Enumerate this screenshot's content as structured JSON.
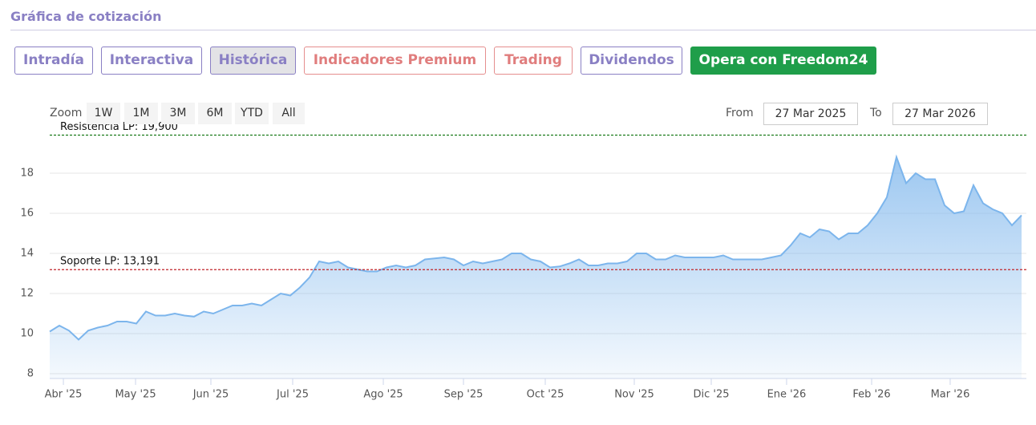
{
  "header": {
    "title": "Gráfica de cotización"
  },
  "tabs": [
    "Intradía",
    "Interactiva",
    "Histórica",
    "Indicadores Premium",
    "Trading",
    "Dividendos",
    "Opera con Freedom24"
  ],
  "zoom": {
    "label": "Zoom",
    "buttons": [
      "1W",
      "1M",
      "3M",
      "6M",
      "YTD",
      "All"
    ]
  },
  "range": {
    "from_label": "From",
    "from": "27 Mar 2025",
    "to_label": "To",
    "to": "27 Mar 2026"
  },
  "chart_data": {
    "type": "area",
    "color": "#7cb5ec",
    "values": [
      10.1,
      10.4,
      10.15,
      9.7,
      10.15,
      10.3,
      10.4,
      10.6,
      10.6,
      10.5,
      11.1,
      10.9,
      10.9,
      11.0,
      10.9,
      10.85,
      11.1,
      11.0,
      11.2,
      11.4,
      11.4,
      11.5,
      11.4,
      11.7,
      12.0,
      11.9,
      12.3,
      12.8,
      13.6,
      13.5,
      13.6,
      13.3,
      13.2,
      13.1,
      13.1,
      13.3,
      13.4,
      13.3,
      13.4,
      13.7,
      13.75,
      13.8,
      13.7,
      13.4,
      13.6,
      13.5,
      13.6,
      13.7,
      14.0,
      14.0,
      13.7,
      13.6,
      13.3,
      13.35,
      13.5,
      13.7,
      13.4,
      13.4,
      13.5,
      13.5,
      13.6,
      14.0,
      14.0,
      13.7,
      13.7,
      13.9,
      13.8,
      13.8,
      13.8,
      13.8,
      13.9,
      13.7,
      13.7,
      13.7,
      13.7,
      13.8,
      13.9,
      14.4,
      15.0,
      14.8,
      15.2,
      15.1,
      14.7,
      15.0,
      15.0,
      15.4,
      16.0,
      16.8,
      18.8,
      17.5,
      18.0,
      17.7,
      17.7,
      16.4,
      16.0,
      16.1,
      17.4,
      16.5,
      16.2,
      16.0,
      15.4,
      15.9
    ],
    "xlim": [
      0,
      101.5
    ],
    "xticks": [
      {
        "value": 1.42,
        "label": "Abr '25"
      },
      {
        "value": 8.92,
        "label": "May '25"
      },
      {
        "value": 16.75,
        "label": "Jun '25"
      },
      {
        "value": 25.25,
        "label": "Jul '25"
      },
      {
        "value": 34.67,
        "label": "Ago '25"
      },
      {
        "value": 43,
        "label": "Sep '25"
      },
      {
        "value": 51.5,
        "label": "Oct '25"
      },
      {
        "value": 60.75,
        "label": "Nov '25"
      },
      {
        "value": 68.75,
        "label": "Dic '25"
      },
      {
        "value": 76.58,
        "label": "Ene '26"
      },
      {
        "value": 85.42,
        "label": "Feb '26"
      },
      {
        "value": 93.58,
        "label": "Mar '26"
      }
    ],
    "ylim": [
      7.76,
      20.2
    ],
    "yticks": [
      8,
      10,
      12,
      14,
      16,
      18
    ],
    "grid": true,
    "reference_lines": [
      {
        "label": "Resistencia LP: 19,900",
        "value": 19.9,
        "color": "#1a7a1a"
      },
      {
        "label": "Soporte LP: 13,191",
        "value": 13.191,
        "color": "#c0242a"
      }
    ]
  }
}
